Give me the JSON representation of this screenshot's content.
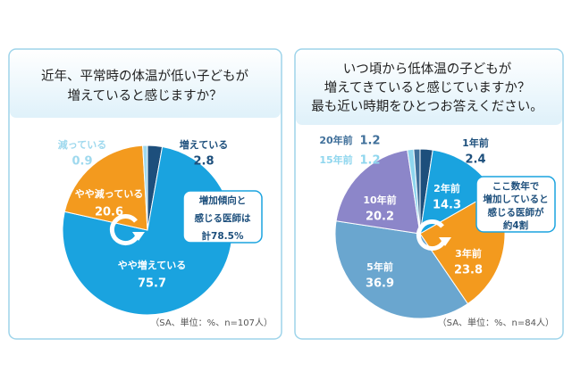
{
  "chart_data": [
    {
      "type": "pie",
      "title": [
        "近年、平常時の体温が低い子どもが",
        "増えていると感じますか？"
      ],
      "categories": [
        "増えている",
        "やや増えている",
        "やや減っている",
        "減っている"
      ],
      "values": [
        2.8,
        75.7,
        20.6,
        0.9
      ],
      "colors": [
        "#1d4f7c",
        "#1aa3df",
        "#f39a1e",
        "#9fd9ee"
      ],
      "annotation": [
        "増加傾向と",
        "感じる医師は",
        "計78.5%"
      ],
      "note": "（SA、単位：%、n=107人）"
    },
    {
      "type": "pie",
      "title": [
        "いつ頃から低体温の子どもが",
        "増えてきていると感じていますか？",
        "最も近い時期をひとつお答えください。"
      ],
      "categories": [
        "1年前",
        "2年前",
        "3年前",
        "5年前",
        "10年前",
        "15年前",
        "20年前"
      ],
      "values": [
        2.4,
        14.3,
        23.8,
        36.9,
        20.2,
        1.2,
        1.2
      ],
      "colors": [
        "#1d4f7c",
        "#1aa3df",
        "#f39a1e",
        "#6aa6cf",
        "#8c86c9",
        "#8fd6ee",
        "#3f6f9a"
      ],
      "annotation": [
        "ここ数年で",
        "増加していると",
        "感じる医師が",
        "約4割"
      ],
      "note": "（SA、単位：%、n=84人）"
    }
  ]
}
